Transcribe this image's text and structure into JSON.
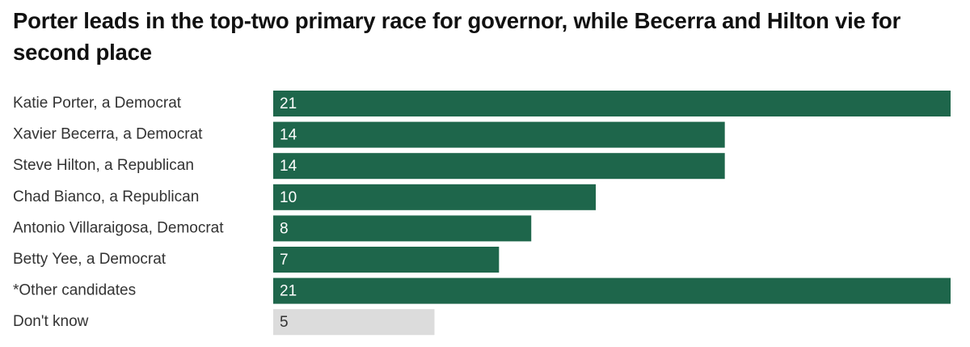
{
  "chart_data": {
    "type": "barh",
    "title": "Porter leads in the top-two primary race for governor, while Becerra and Hilton vie for second place",
    "categories": [
      "Katie Porter, a Democrat",
      "Xavier Becerra, a Democrat",
      "Steve Hilton, a Republican",
      "Chad Bianco, a Republican",
      "Antonio Villaraigosa, Democrat",
      "Betty Yee, a Democrat",
      "*Other candidates",
      "Don't know"
    ],
    "values": [
      21,
      14,
      14,
      10,
      8,
      7,
      21,
      5
    ],
    "colors": [
      "#1e664b",
      "#1e664b",
      "#1e664b",
      "#1e664b",
      "#1e664b",
      "#1e664b",
      "#1e664b",
      "#dcdcdc"
    ],
    "label_colors": [
      "#ffffff",
      "#ffffff",
      "#ffffff",
      "#ffffff",
      "#ffffff",
      "#ffffff",
      "#ffffff",
      "#333333"
    ],
    "xlim": [
      0,
      21
    ]
  }
}
